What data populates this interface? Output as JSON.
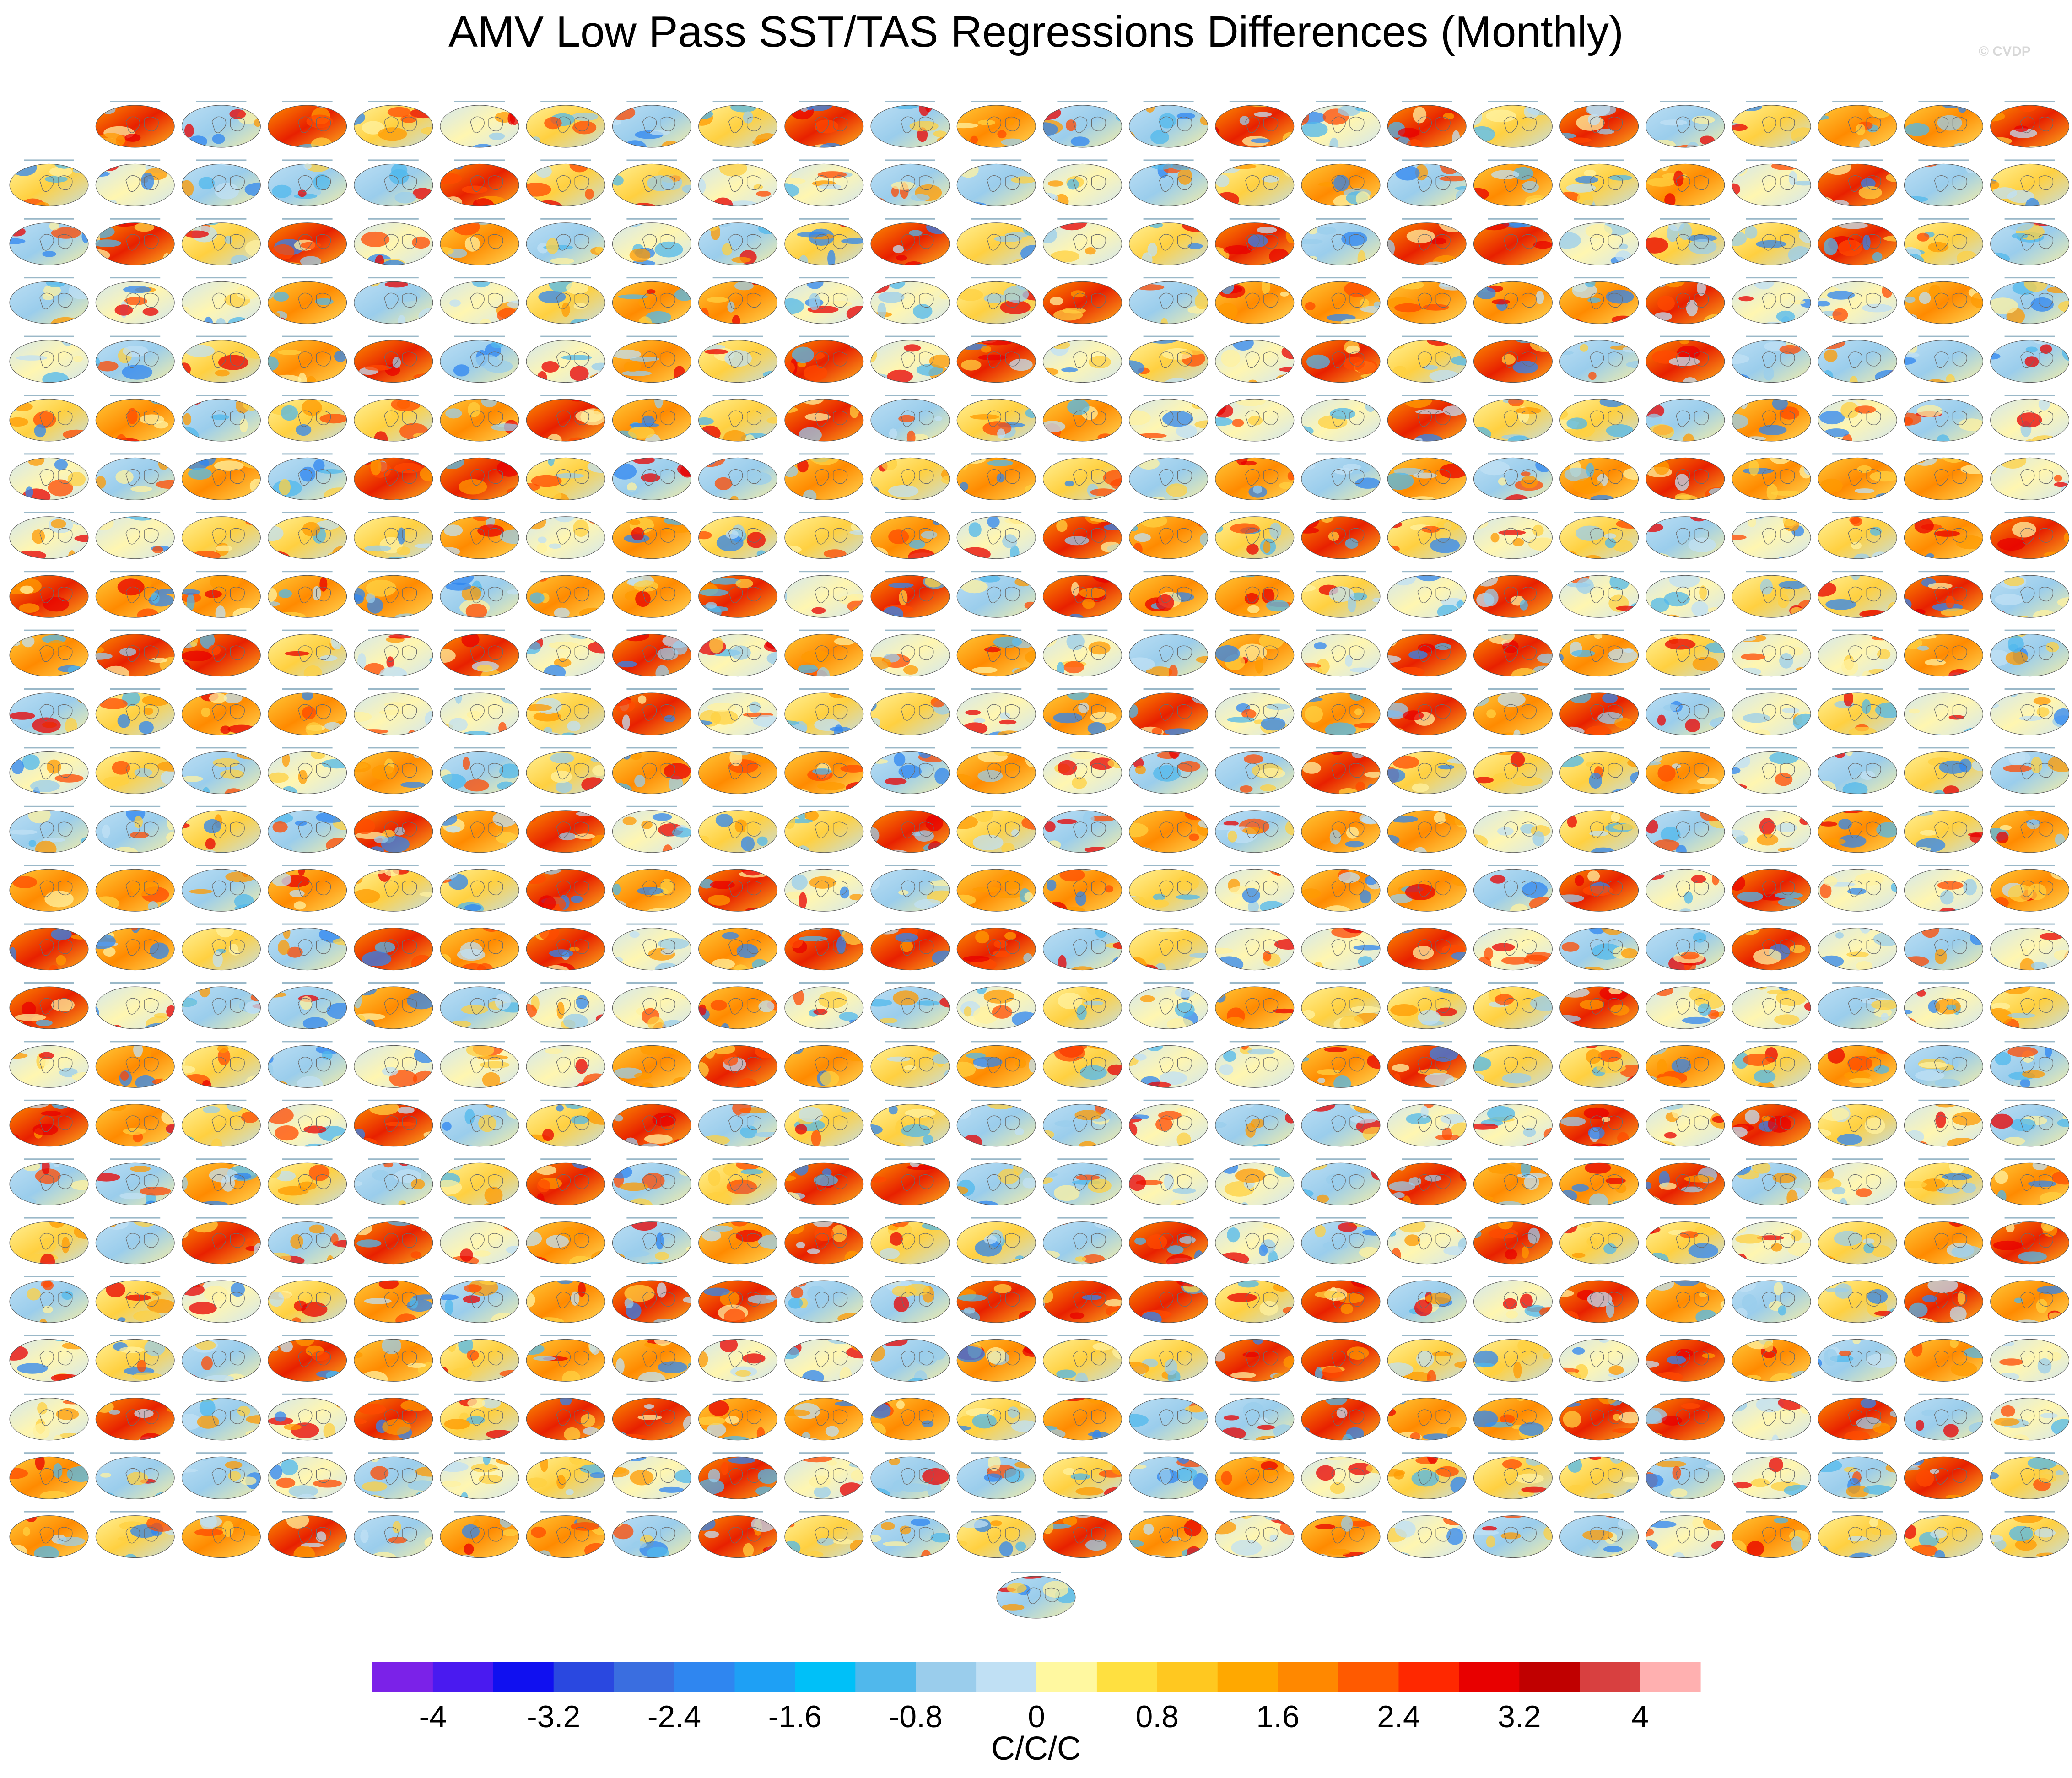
{
  "title": "AMV Low Pass SST/TAS Regressions Differences (Monthly)",
  "watermark": "© CVDP",
  "chart_data": {
    "type": "heatmap",
    "title": "AMV Low Pass SST/TAS Regressions Differences (Monthly)",
    "description_of_panels": "grid of small global regression-difference maps, 24 columns by 25 rows plus one centered panel",
    "panel_grid": {
      "columns": 24,
      "rows": 25,
      "first_row_panels": 23,
      "extra_centered_panels": 1
    },
    "colorbar": {
      "units": "C/C/C",
      "range": [
        -4.4,
        4.4
      ],
      "ticks": [
        "-4",
        "-3.2",
        "-2.4",
        "-1.6",
        "-0.8",
        "0",
        "0.8",
        "1.6",
        "2.4",
        "3.2",
        "4"
      ],
      "bin_edges": [
        -4,
        -3.6,
        -3.2,
        -2.8,
        -2.4,
        -2.0,
        -1.6,
        -1.2,
        -0.8,
        -0.4,
        0,
        0.4,
        0.8,
        1.2,
        1.6,
        2.0,
        2.4,
        2.8,
        3.2,
        3.6,
        4
      ],
      "colors": [
        "#7b22e8",
        "#4a1af0",
        "#1010f0",
        "#2a48e0",
        "#3a6ee0",
        "#2f86f0",
        "#1ea0f5",
        "#00c0f8",
        "#50b8ec",
        "#9acdec",
        "#c0e0f4",
        "#fff8a0",
        "#ffe040",
        "#ffc820",
        "#ffa800",
        "#ff8800",
        "#ff5a00",
        "#ff2800",
        "#e80000",
        "#c00000",
        "#d84040",
        "#ffb0b0"
      ]
    }
  }
}
